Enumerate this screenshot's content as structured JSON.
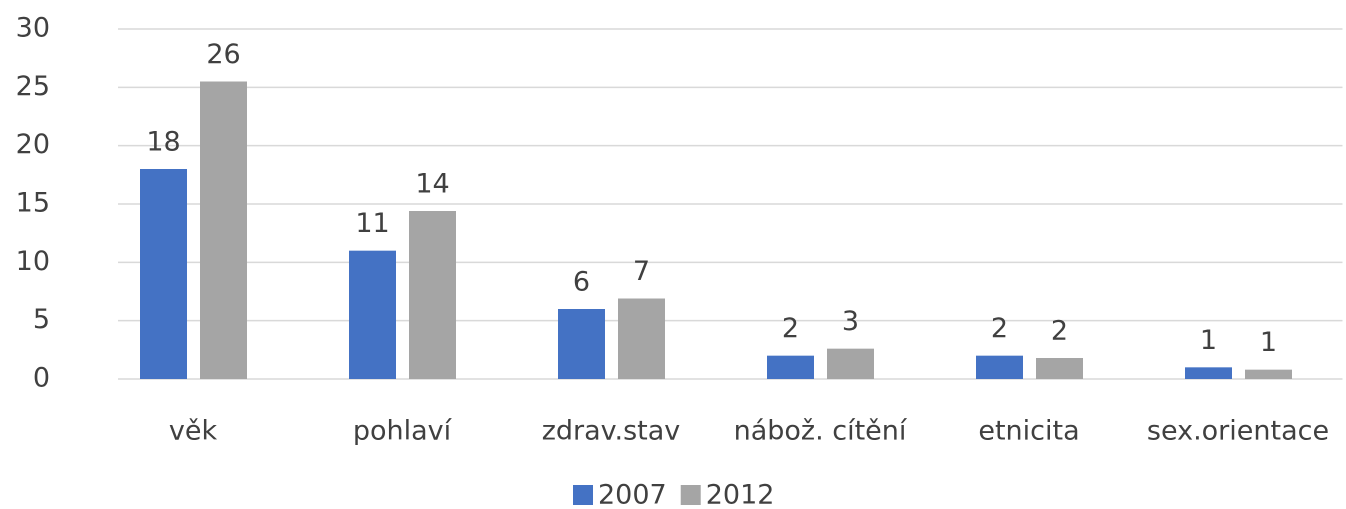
{
  "chart_data": {
    "type": "bar",
    "categories": [
      "věk",
      "pohlaví",
      "zdrav.stav",
      "nábož. cítění",
      "etnicita",
      "sex.orientace"
    ],
    "series": [
      {
        "name": "2007",
        "color": "#4472c4",
        "values": [
          18,
          11,
          6,
          2,
          2,
          1
        ]
      },
      {
        "name": "2012",
        "color": "#a5a5a5",
        "values": [
          25.5,
          14.4,
          6.9,
          2.6,
          1.8,
          0.8
        ],
        "value_labels": [
          "26",
          "14",
          "7",
          "3",
          "2",
          "1"
        ]
      }
    ],
    "ylim": [
      0,
      30
    ],
    "yticks": [
      0,
      5,
      10,
      15,
      20,
      25,
      30
    ],
    "grid": true,
    "legend": "bottom"
  }
}
